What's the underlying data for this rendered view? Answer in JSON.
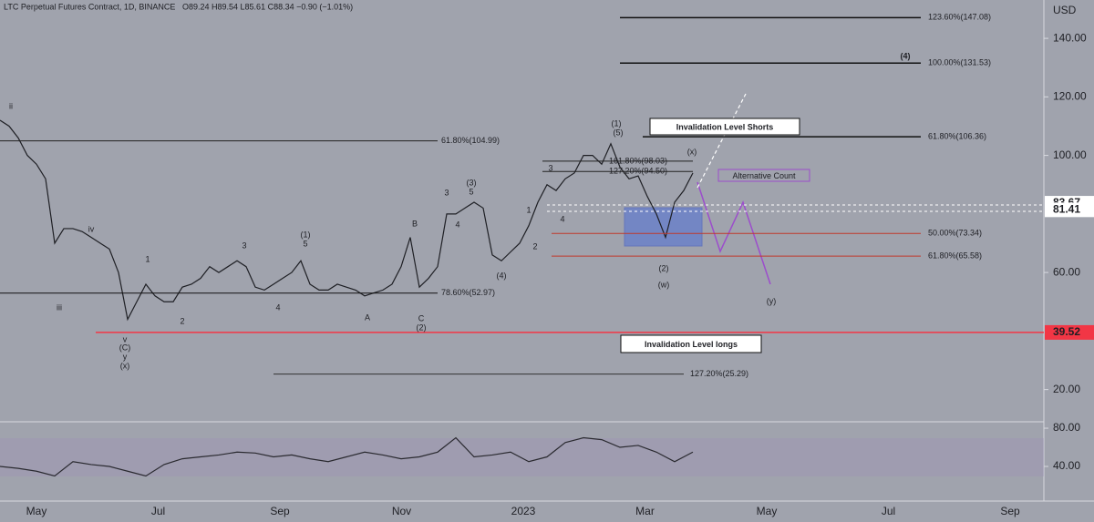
{
  "chart_data": [
    {
      "type": "line",
      "title": "LTC Perpetual Futures Contract, 1D, BINANCE",
      "quote": "O89.24 H89.54 L85.61 C88.34 −0.90 (−1.01%)",
      "currency": "USD",
      "ylim": [
        9.3,
        153.1
      ],
      "yticks": [
        {
          "value": 140,
          "label": "140.00"
        },
        {
          "value": 120,
          "label": "120.00"
        },
        {
          "value": 100,
          "label": "100.00"
        },
        {
          "value": 60,
          "label": "60.00"
        },
        {
          "value": 20,
          "label": "20.00"
        }
      ],
      "x_labels": [
        "May",
        "Jul",
        "Sep",
        "Nov",
        "2023",
        "Mar",
        "May",
        "Jul",
        "Sep"
      ],
      "series": [
        {
          "color": "#1e1f24",
          "values": [
            112,
            110,
            106,
            100,
            97,
            92,
            70,
            75,
            75,
            74,
            72,
            70,
            68,
            60,
            44,
            50,
            56,
            52,
            50,
            50,
            55,
            56,
            58,
            62,
            60,
            62,
            64,
            62,
            55,
            54,
            56,
            58,
            60,
            64,
            56,
            54,
            54,
            56,
            55,
            54,
            52,
            53,
            54,
            56,
            62,
            72,
            55,
            58,
            62,
            80,
            80,
            82,
            84,
            82,
            66,
            64,
            67,
            70,
            76,
            84,
            90,
            88,
            92,
            94,
            100,
            100,
            97,
            104,
            96,
            92,
            93,
            86,
            80,
            72,
            84,
            88,
            94
          ]
        }
      ],
      "levels": [
        {
          "label": "123.60%(147.08)",
          "value": 147.08,
          "color": "#111111"
        },
        {
          "label": "100.00%(131.53)",
          "value": 131.53,
          "color": "#111111"
        },
        {
          "label": "61.80%(106.36)",
          "value": 106.36,
          "color": "#111111"
        },
        {
          "label": "61.80%(104.99)",
          "value": 104.99,
          "color": "#222222"
        },
        {
          "label": "161.80%(98.03)",
          "value": 98.03,
          "color": "#222222"
        },
        {
          "label": "127.20%(94.50)",
          "value": 94.5,
          "color": "#222222"
        },
        {
          "label": "50.00%(73.34)",
          "value": 73.34,
          "color": "#c0392b"
        },
        {
          "label": "61.80%(65.58)",
          "value": 65.58,
          "color": "#c0392b"
        },
        {
          "label": "78.60%(52.97)",
          "value": 52.97,
          "color": "#111111"
        },
        {
          "label": "127.20%(25.29)",
          "value": 25.29,
          "color": "#333333"
        }
      ],
      "price_labels": [
        {
          "value": 83.67,
          "label": "83.67",
          "color": "#ffffff"
        },
        {
          "value": 81.41,
          "label": "81.41",
          "color": "#ffffff"
        },
        {
          "value": 39.52,
          "label": "39.52",
          "color": "#f23645"
        }
      ],
      "boxes": [
        "Invalidation Level Shorts",
        "Invalidation Level longs",
        "Alternative Count",
        "(4)"
      ],
      "annotations": [
        {
          "text": "ii",
          "color": "#ffffff"
        },
        {
          "text": "iii",
          "color": "#ffffff"
        },
        {
          "text": "iv",
          "color": "#ffffff"
        },
        {
          "text": "v",
          "color": "#ffffff"
        },
        {
          "text": "(C)",
          "color": "#111111"
        },
        {
          "text": "y",
          "color": "#ffffff"
        },
        {
          "text": "(x)",
          "color": "#d32f2f"
        },
        {
          "text": "1",
          "color": "#ffffff"
        },
        {
          "text": "2",
          "color": "#ffffff"
        },
        {
          "text": "3",
          "color": "#ffffff"
        },
        {
          "text": "4",
          "color": "#ffffff"
        },
        {
          "text": "(1)",
          "color": "#ffffff"
        },
        {
          "text": "5",
          "color": "#ffffff"
        },
        {
          "text": "A",
          "color": "#ffffff"
        },
        {
          "text": "B",
          "color": "#ffffff"
        },
        {
          "text": "C",
          "color": "#ffffff"
        },
        {
          "text": "(2)",
          "color": "#ffffff"
        },
        {
          "text": "3",
          "color": "#ffffff"
        },
        {
          "text": "(3)",
          "color": "#ffffff"
        },
        {
          "text": "5",
          "color": "#ffffff"
        },
        {
          "text": "4",
          "color": "#ffffff"
        },
        {
          "text": "1",
          "color": "#ffffff"
        },
        {
          "text": "2",
          "color": "#ffffff"
        },
        {
          "text": "(4)",
          "color": "#ffffff"
        },
        {
          "text": "4",
          "color": "#ffffff"
        },
        {
          "text": "3",
          "color": "#ffffff"
        },
        {
          "text": "(1)",
          "color": "#111111"
        },
        {
          "text": "(5)",
          "color": "#ffffff"
        },
        {
          "text": "(2)",
          "color": "#111111"
        },
        {
          "text": "(w)",
          "color": "#9c4dcc"
        },
        {
          "text": "(x)",
          "color": "#9c4dcc"
        },
        {
          "text": "(y)",
          "color": "#9c4dcc"
        }
      ]
    },
    {
      "type": "line",
      "ylim": [
        5.7,
        84.8
      ],
      "yticks": [
        {
          "value": 80,
          "label": "80.00"
        },
        {
          "value": 40,
          "label": "40.00"
        }
      ],
      "series": [
        {
          "color": "#2a2a30",
          "values": [
            40,
            38,
            35,
            30,
            45,
            42,
            40,
            35,
            30,
            42,
            48,
            50,
            52,
            55,
            54,
            50,
            52,
            48,
            45,
            50,
            55,
            52,
            48,
            50,
            55,
            70,
            50,
            52,
            55,
            45,
            50,
            65,
            70,
            68,
            60,
            62,
            55,
            45,
            55
          ]
        }
      ]
    }
  ]
}
